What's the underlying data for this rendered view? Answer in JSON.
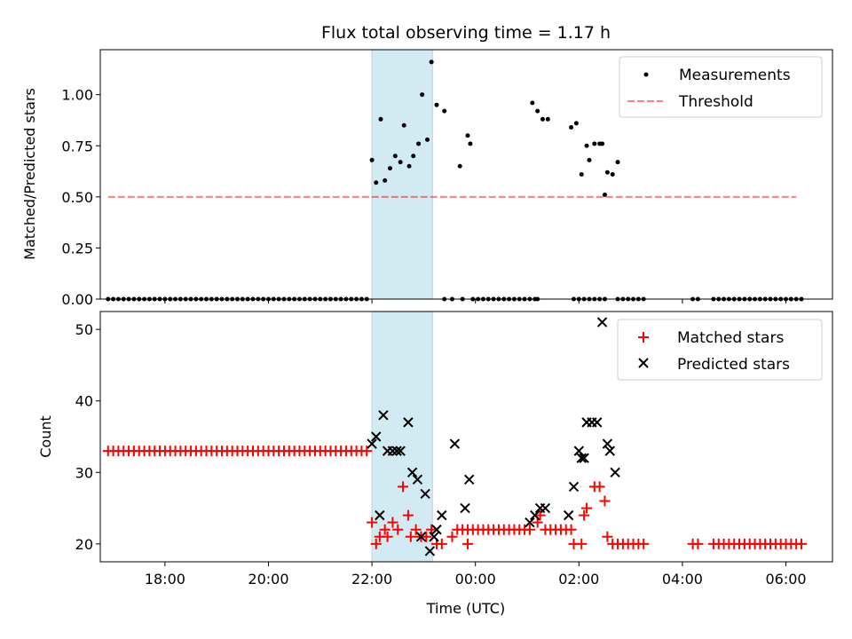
{
  "chart_data": [
    {
      "type": "scatter",
      "title": "Flux total observing time = 1.17 h",
      "xlabel": "",
      "ylabel": "Matched/Predicted stars",
      "x_unit": "hours since 00:00 UTC (axis printed as clock time)",
      "xlim": [
        -7.25,
        6.9
      ],
      "ylim": [
        0.0,
        1.22
      ],
      "yticks": [
        0.0,
        0.25,
        0.5,
        0.75,
        1.0
      ],
      "ytick_labels": [
        "0.00",
        "0.25",
        "0.50",
        "0.75",
        "1.00"
      ],
      "shaded_interval": [
        -2.0,
        -0.83
      ],
      "shade_color": "#add8e6",
      "legend_position": "upper right",
      "series": [
        {
          "name": "Measurements",
          "kind": "points",
          "color": "#000000",
          "zero_points_x": [
            -7.1,
            -7.0,
            -6.9,
            -6.8,
            -6.7,
            -6.6,
            -6.5,
            -6.4,
            -6.3,
            -6.2,
            -6.1,
            -6.0,
            -5.9,
            -5.8,
            -5.7,
            -5.6,
            -5.5,
            -5.4,
            -5.3,
            -5.2,
            -5.1,
            -5.0,
            -4.9,
            -4.8,
            -4.7,
            -4.6,
            -4.5,
            -4.4,
            -4.3,
            -4.2,
            -4.1,
            -4.0,
            -3.9,
            -3.8,
            -3.7,
            -3.6,
            -3.5,
            -3.4,
            -3.3,
            -3.2,
            -3.1,
            -3.0,
            -2.9,
            -2.8,
            -2.7,
            -2.6,
            -2.5,
            -2.4,
            -2.3,
            -2.2,
            -2.1,
            -0.6,
            -0.45,
            -0.25,
            -0.05,
            0.05,
            0.15,
            0.25,
            0.35,
            0.45,
            0.55,
            0.65,
            0.75,
            0.85,
            0.95,
            1.05,
            1.15,
            1.2,
            1.9,
            2.0,
            2.1,
            2.2,
            2.3,
            2.4,
            2.5,
            2.75,
            2.85,
            2.95,
            3.05,
            3.15,
            3.25,
            4.2,
            4.3,
            4.6,
            4.7,
            4.8,
            4.9,
            5.0,
            5.1,
            5.2,
            5.3,
            5.4,
            5.5,
            5.6,
            5.7,
            5.8,
            5.9,
            6.0,
            6.1,
            6.2,
            6.3
          ],
          "points": [
            {
              "x": -2.0,
              "y": 0.68
            },
            {
              "x": -1.92,
              "y": 0.57
            },
            {
              "x": -1.83,
              "y": 0.88
            },
            {
              "x": -1.75,
              "y": 0.58
            },
            {
              "x": -1.65,
              "y": 0.64
            },
            {
              "x": -1.55,
              "y": 0.7
            },
            {
              "x": -1.45,
              "y": 0.67
            },
            {
              "x": -1.38,
              "y": 0.85
            },
            {
              "x": -1.28,
              "y": 0.65
            },
            {
              "x": -1.2,
              "y": 0.7
            },
            {
              "x": -1.1,
              "y": 0.76
            },
            {
              "x": -1.03,
              "y": 1.0
            },
            {
              "x": -0.93,
              "y": 0.78
            },
            {
              "x": -0.85,
              "y": 1.16
            },
            {
              "x": -0.75,
              "y": 0.95
            },
            {
              "x": -0.6,
              "y": 0.92
            },
            {
              "x": -0.3,
              "y": 0.65
            },
            {
              "x": -0.15,
              "y": 0.8
            },
            {
              "x": -0.1,
              "y": 0.76
            },
            {
              "x": 1.1,
              "y": 0.96
            },
            {
              "x": 1.2,
              "y": 0.92
            },
            {
              "x": 1.3,
              "y": 0.88
            },
            {
              "x": 1.4,
              "y": 0.88
            },
            {
              "x": 1.85,
              "y": 0.84
            },
            {
              "x": 1.95,
              "y": 0.86
            },
            {
              "x": 2.05,
              "y": 0.61
            },
            {
              "x": 2.15,
              "y": 0.75
            },
            {
              "x": 2.2,
              "y": 0.68
            },
            {
              "x": 2.3,
              "y": 0.76
            },
            {
              "x": 2.4,
              "y": 0.76
            },
            {
              "x": 2.45,
              "y": 0.76
            },
            {
              "x": 2.5,
              "y": 0.51
            },
            {
              "x": 2.55,
              "y": 0.62
            },
            {
              "x": 2.65,
              "y": 0.61
            },
            {
              "x": 2.75,
              "y": 0.67
            }
          ]
        },
        {
          "name": "Threshold",
          "kind": "dashed-line",
          "color": "#ff0000",
          "x": [
            -7.1,
            6.2
          ],
          "y": [
            0.5,
            0.5
          ]
        }
      ]
    },
    {
      "type": "scatter",
      "title": "",
      "xlabel": "Time (UTC)",
      "ylabel": "Count",
      "xlim": [
        -7.25,
        6.9
      ],
      "ylim": [
        17.5,
        52.5
      ],
      "yticks": [
        20,
        30,
        40,
        50
      ],
      "xticks": [
        -6,
        -4,
        -2,
        0,
        2,
        4,
        6
      ],
      "xtick_labels": [
        "18:00",
        "20:00",
        "22:00",
        "00:00",
        "02:00",
        "04:00",
        "06:00"
      ],
      "shaded_interval": [
        -2.0,
        -0.83
      ],
      "shade_color": "#add8e6",
      "legend_position": "upper right",
      "series": [
        {
          "name": "Matched stars",
          "marker": "+",
          "color": "#ff0000",
          "flat_runs": [
            {
              "y": 33,
              "x_start": -7.1,
              "x_end": -2.1,
              "step": 0.1
            },
            {
              "y": 22,
              "x_start": -0.35,
              "x_end": 1.1,
              "step": 0.1
            },
            {
              "y": 22,
              "x_start": 1.35,
              "x_end": 1.85,
              "step": 0.1
            },
            {
              "y": 20,
              "x_start": 2.65,
              "x_end": 3.25,
              "step": 0.1
            },
            {
              "y": 20,
              "x_start": 4.2,
              "x_end": 4.3,
              "step": 0.1
            },
            {
              "y": 20,
              "x_start": 4.6,
              "x_end": 6.3,
              "step": 0.1
            }
          ],
          "points": [
            {
              "x": -2.0,
              "y": 23
            },
            {
              "x": -1.92,
              "y": 20
            },
            {
              "x": -1.85,
              "y": 21
            },
            {
              "x": -1.75,
              "y": 22
            },
            {
              "x": -1.7,
              "y": 21
            },
            {
              "x": -1.6,
              "y": 23
            },
            {
              "x": -1.5,
              "y": 22
            },
            {
              "x": -1.4,
              "y": 28
            },
            {
              "x": -1.3,
              "y": 24
            },
            {
              "x": -1.25,
              "y": 21
            },
            {
              "x": -1.15,
              "y": 22
            },
            {
              "x": -1.05,
              "y": 21
            },
            {
              "x": -0.95,
              "y": 21
            },
            {
              "x": -0.85,
              "y": 22
            },
            {
              "x": -0.75,
              "y": 20
            },
            {
              "x": -0.65,
              "y": 20
            },
            {
              "x": -0.45,
              "y": 21
            },
            {
              "x": -0.15,
              "y": 20
            },
            {
              "x": 1.2,
              "y": 23
            },
            {
              "x": 1.25,
              "y": 24
            },
            {
              "x": 1.9,
              "y": 20
            },
            {
              "x": 2.05,
              "y": 20
            },
            {
              "x": 2.1,
              "y": 24
            },
            {
              "x": 2.15,
              "y": 25
            },
            {
              "x": 2.3,
              "y": 28
            },
            {
              "x": 2.4,
              "y": 28
            },
            {
              "x": 2.5,
              "y": 26
            },
            {
              "x": 2.55,
              "y": 21
            }
          ]
        },
        {
          "name": "Predicted stars",
          "marker": "x",
          "color": "#000000",
          "points": [
            {
              "x": -2.0,
              "y": 34
            },
            {
              "x": -1.92,
              "y": 35
            },
            {
              "x": -1.85,
              "y": 24
            },
            {
              "x": -1.78,
              "y": 38
            },
            {
              "x": -1.7,
              "y": 33
            },
            {
              "x": -1.6,
              "y": 33
            },
            {
              "x": -1.52,
              "y": 33
            },
            {
              "x": -1.45,
              "y": 33
            },
            {
              "x": -1.3,
              "y": 37
            },
            {
              "x": -1.22,
              "y": 30
            },
            {
              "x": -1.12,
              "y": 29
            },
            {
              "x": -1.05,
              "y": 21
            },
            {
              "x": -0.97,
              "y": 27
            },
            {
              "x": -0.88,
              "y": 19
            },
            {
              "x": -0.8,
              "y": 21
            },
            {
              "x": -0.75,
              "y": 22
            },
            {
              "x": -0.65,
              "y": 24
            },
            {
              "x": -0.4,
              "y": 34
            },
            {
              "x": -0.2,
              "y": 25
            },
            {
              "x": -0.12,
              "y": 29
            },
            {
              "x": 1.05,
              "y": 23
            },
            {
              "x": 1.15,
              "y": 24
            },
            {
              "x": 1.25,
              "y": 25
            },
            {
              "x": 1.35,
              "y": 25
            },
            {
              "x": 1.8,
              "y": 24
            },
            {
              "x": 1.9,
              "y": 28
            },
            {
              "x": 2.0,
              "y": 33
            },
            {
              "x": 2.05,
              "y": 32
            },
            {
              "x": 2.1,
              "y": 32
            },
            {
              "x": 2.15,
              "y": 37
            },
            {
              "x": 2.25,
              "y": 37
            },
            {
              "x": 2.35,
              "y": 37
            },
            {
              "x": 2.45,
              "y": 51
            },
            {
              "x": 2.55,
              "y": 34
            },
            {
              "x": 2.6,
              "y": 33
            },
            {
              "x": 2.7,
              "y": 30
            }
          ]
        }
      ]
    }
  ]
}
